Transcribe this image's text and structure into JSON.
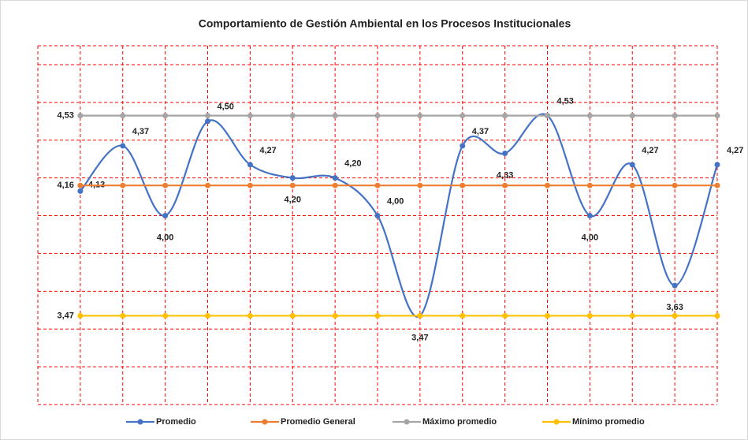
{
  "chart_data": {
    "type": "line",
    "title": "Comportamiento de Gestión Ambiental en los Procesos Institucionales",
    "categories": [
      null,
      null,
      null,
      null,
      null,
      null,
      null,
      null,
      null,
      null,
      null,
      null,
      null,
      null,
      null,
      null
    ],
    "series": [
      {
        "name": "Promedio",
        "color": "#4472c4",
        "smooth": true,
        "values": [
          4.13,
          4.37,
          4.0,
          4.5,
          4.27,
          4.2,
          4.2,
          4.0,
          3.47,
          4.37,
          4.33,
          4.53,
          4.0,
          4.27,
          3.63,
          4.27
        ],
        "value_labels": [
          "4,13",
          "4,37",
          "4,00",
          "4,50",
          "4,27",
          "4,20",
          "4,20",
          "4,00",
          "3,47",
          "4,37",
          "4,33",
          "4,53",
          "4,00",
          "4,27",
          "3,63",
          "4,27"
        ]
      },
      {
        "name": "Promedio General",
        "color": "#ed7d31",
        "values": [
          4.16,
          4.16,
          4.16,
          4.16,
          4.16,
          4.16,
          4.16,
          4.16,
          4.16,
          4.16,
          4.16,
          4.16,
          4.16,
          4.16,
          4.16,
          4.16
        ],
        "value_labels": [
          "4,16",
          null,
          null,
          null,
          null,
          null,
          null,
          null,
          null,
          null,
          null,
          null,
          null,
          null,
          null,
          null
        ]
      },
      {
        "name": "Máximo promedio",
        "color": "#a5a5a5",
        "values": [
          4.53,
          4.53,
          4.53,
          4.53,
          4.53,
          4.53,
          4.53,
          4.53,
          4.53,
          4.53,
          4.53,
          4.53,
          4.53,
          4.53,
          4.53,
          4.53
        ],
        "value_labels": [
          "4,53",
          null,
          null,
          null,
          null,
          null,
          null,
          null,
          null,
          null,
          null,
          null,
          null,
          null,
          null,
          null
        ]
      },
      {
        "name": "Mínimo promedio",
        "color": "#ffc000",
        "values": [
          3.47,
          3.47,
          3.47,
          3.47,
          3.47,
          3.47,
          3.47,
          3.47,
          3.47,
          3.47,
          3.47,
          3.47,
          3.47,
          3.47,
          3.47,
          3.47
        ],
        "value_labels": [
          "3,47",
          null,
          null,
          null,
          null,
          null,
          null,
          null,
          null,
          null,
          null,
          null,
          null,
          null,
          null,
          null
        ]
      }
    ],
    "ylim": [
      3,
      4.9
    ],
    "yticks": [
      3,
      3.2,
      3.4,
      3.6,
      3.8,
      4,
      4.2,
      4.4,
      4.6,
      4.8
    ],
    "grid": true,
    "grid_color": "#ff0000",
    "legend": "bottom"
  }
}
